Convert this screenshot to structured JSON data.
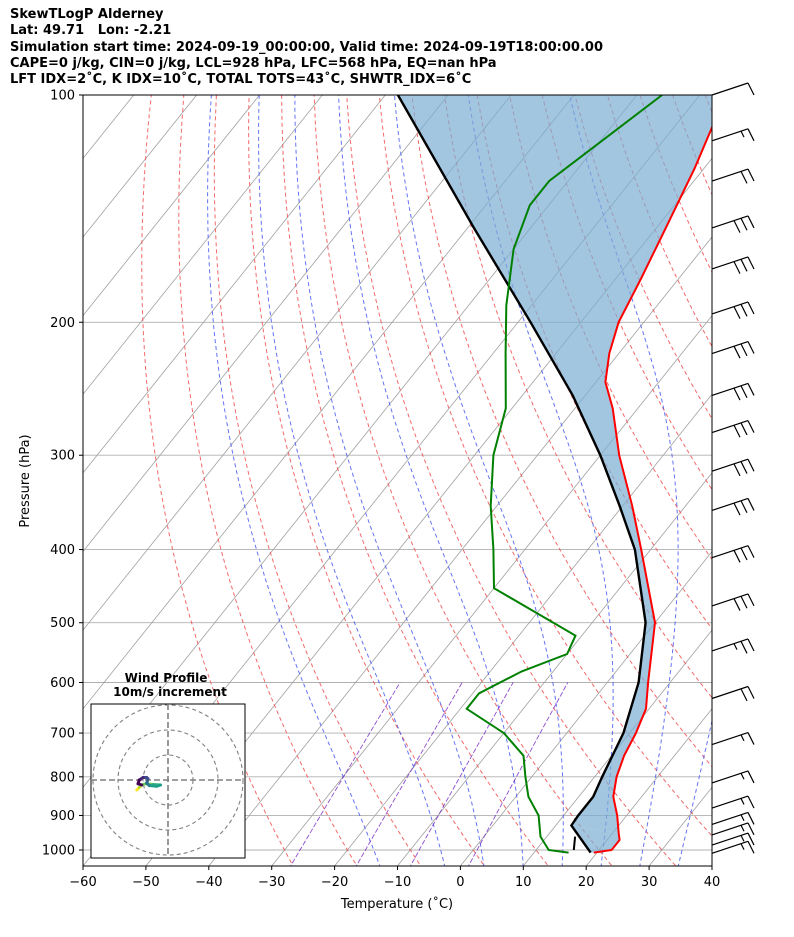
{
  "header": {
    "line1": "SkewTLogP Alderney",
    "line2": "Lat: 49.71   Lon: -2.21",
    "line3": "Simulation start time: 2024-09-19_00:00:00, Valid time: 2024-09-19T18:00:00.00",
    "line4": "CAPE=0 j/kg, CIN=0 j/kg, LCL=928 hPa, LFC=568 hPa, EQ=nan hPa",
    "line5": "LFT IDX=2˚C, K IDX=10˚C, TOTAL TOTS=43˚C, SHWTR_IDX=6˚C"
  },
  "colors": {
    "temperature": "#ff0000",
    "dewpoint": "#008000",
    "parcel": "#000000",
    "cape_fill": "#7aaed3",
    "dry_adiabat": "#f05050",
    "moist_adiabat": "#4a5cf0",
    "mixing_ratio": "#7020c0",
    "isotherm": "#a0a0a0",
    "grid": "#b0b0b0"
  },
  "chart_data": {
    "type": "skew-t log-p",
    "xlabel": "Temperature (˚C)",
    "ylabel": "Pressure (hPa)",
    "xlim": [
      -60,
      40
    ],
    "ylim": [
      1050,
      100
    ],
    "x_ticks": [
      -60,
      -50,
      -40,
      -30,
      -20,
      -10,
      0,
      10,
      20,
      30,
      40
    ],
    "y_ticks": [
      100,
      200,
      300,
      400,
      500,
      600,
      700,
      800,
      900,
      1000
    ],
    "y_scale": "log",
    "grid": true,
    "temperature": [
      {
        "p": 1008,
        "t": 19.5
      },
      {
        "p": 1000,
        "t": 22.0
      },
      {
        "p": 970,
        "t": 22.0
      },
      {
        "p": 950,
        "t": 21.0
      },
      {
        "p": 900,
        "t": 18.5
      },
      {
        "p": 850,
        "t": 15.5
      },
      {
        "p": 800,
        "t": 13.5
      },
      {
        "p": 750,
        "t": 12.0
      },
      {
        "p": 700,
        "t": 11.0
      },
      {
        "p": 650,
        "t": 9.5
      },
      {
        "p": 600,
        "t": 6.5
      },
      {
        "p": 500,
        "t": 0.0
      },
      {
        "p": 400,
        "t": -11.5
      },
      {
        "p": 350,
        "t": -18.5
      },
      {
        "p": 300,
        "t": -27.0
      },
      {
        "p": 260,
        "t": -34.0
      },
      {
        "p": 240,
        "t": -38.5
      },
      {
        "p": 220,
        "t": -41.5
      },
      {
        "p": 200,
        "t": -44.0
      },
      {
        "p": 175,
        "t": -46.0
      },
      {
        "p": 150,
        "t": -48.5
      },
      {
        "p": 125,
        "t": -51.5
      },
      {
        "p": 110,
        "t": -54.0
      },
      {
        "p": 100,
        "t": -56.0
      }
    ],
    "dewpoint": [
      {
        "p": 1008,
        "t": 15.5
      },
      {
        "p": 1000,
        "t": 12.0
      },
      {
        "p": 960,
        "t": 9.0
      },
      {
        "p": 900,
        "t": 6.0
      },
      {
        "p": 850,
        "t": 2.0
      },
      {
        "p": 800,
        "t": -1.0
      },
      {
        "p": 750,
        "t": -4.0
      },
      {
        "p": 700,
        "t": -10.0
      },
      {
        "p": 650,
        "t": -19.0
      },
      {
        "p": 620,
        "t": -19.0
      },
      {
        "p": 580,
        "t": -15.0
      },
      {
        "p": 550,
        "t": -10.0
      },
      {
        "p": 520,
        "t": -11.0
      },
      {
        "p": 450,
        "t": -30.0
      },
      {
        "p": 400,
        "t": -35.0
      },
      {
        "p": 350,
        "t": -41.0
      },
      {
        "p": 300,
        "t": -47.0
      },
      {
        "p": 260,
        "t": -51.0
      },
      {
        "p": 220,
        "t": -58.0
      },
      {
        "p": 190,
        "t": -64.0
      },
      {
        "p": 160,
        "t": -70.0
      },
      {
        "p": 140,
        "t": -73.0
      },
      {
        "p": 130,
        "t": -73.0
      },
      {
        "p": 100,
        "t": -66.0
      }
    ],
    "parcel": [
      {
        "p": 1008,
        "t": 19.0
      },
      {
        "p": 928,
        "t": 12.5
      },
      {
        "p": 900,
        "t": 12.3
      },
      {
        "p": 850,
        "t": 12.3
      },
      {
        "p": 800,
        "t": 11.2
      },
      {
        "p": 700,
        "t": 9.0
      },
      {
        "p": 600,
        "t": 5.0
      },
      {
        "p": 500,
        "t": -1.5
      },
      {
        "p": 400,
        "t": -12.5
      },
      {
        "p": 350,
        "t": -20.5
      },
      {
        "p": 300,
        "t": -30.0
      },
      {
        "p": 250,
        "t": -42.0
      },
      {
        "p": 200,
        "t": -58.0
      },
      {
        "p": 150,
        "t": -79.0
      },
      {
        "p": 100,
        "t": -108.0
      }
    ],
    "parcel_near_surface": [
      {
        "p": 1000,
        "t": 16.0
      },
      {
        "p": 960,
        "t": 14.5
      }
    ],
    "wind_barbs": [
      {
        "p": 100,
        "speed_kt": 10
      },
      {
        "p": 115,
        "speed_kt": 15
      },
      {
        "p": 130,
        "speed_kt": 20
      },
      {
        "p": 150,
        "speed_kt": 30
      },
      {
        "p": 170,
        "speed_kt": 30
      },
      {
        "p": 195,
        "speed_kt": 30
      },
      {
        "p": 220,
        "speed_kt": 30
      },
      {
        "p": 250,
        "speed_kt": 30
      },
      {
        "p": 280,
        "speed_kt": 30
      },
      {
        "p": 315,
        "speed_kt": 30
      },
      {
        "p": 355,
        "speed_kt": 30
      },
      {
        "p": 410,
        "speed_kt": 30
      },
      {
        "p": 475,
        "speed_kt": 30
      },
      {
        "p": 545,
        "speed_kt": 25
      },
      {
        "p": 630,
        "speed_kt": 20
      },
      {
        "p": 725,
        "speed_kt": 15
      },
      {
        "p": 815,
        "speed_kt": 15
      },
      {
        "p": 880,
        "speed_kt": 15
      },
      {
        "p": 925,
        "speed_kt": 15
      },
      {
        "p": 955,
        "speed_kt": 15
      },
      {
        "p": 985,
        "speed_kt": 15
      },
      {
        "p": 1010,
        "speed_kt": 15
      }
    ],
    "hodograph": {
      "title_line1": "Wind Profile",
      "title_line2": "10m/s increment",
      "rings_ms": [
        10,
        20,
        30
      ],
      "points": [
        {
          "u": -12.5,
          "v": -4.0
        },
        {
          "u": -11.5,
          "v": -3.0
        },
        {
          "u": -10.5,
          "v": -2.0
        },
        {
          "u": -9.0,
          "v": -1.5
        },
        {
          "u": -6.0,
          "v": -1.8
        },
        {
          "u": -3.0,
          "v": -2.0
        },
        {
          "u": -4.5,
          "v": -2.5
        },
        {
          "u": -7.5,
          "v": -2.2
        },
        {
          "u": -8.5,
          "v": -1.3
        },
        {
          "u": -8.0,
          "v": 0.5
        },
        {
          "u": -8.5,
          "v": 1.0
        },
        {
          "u": -10.0,
          "v": 1.0
        },
        {
          "u": -11.5,
          "v": 0.0
        },
        {
          "u": -12.0,
          "v": -1.5
        },
        {
          "u": -10.5,
          "v": -2.0
        }
      ]
    }
  }
}
